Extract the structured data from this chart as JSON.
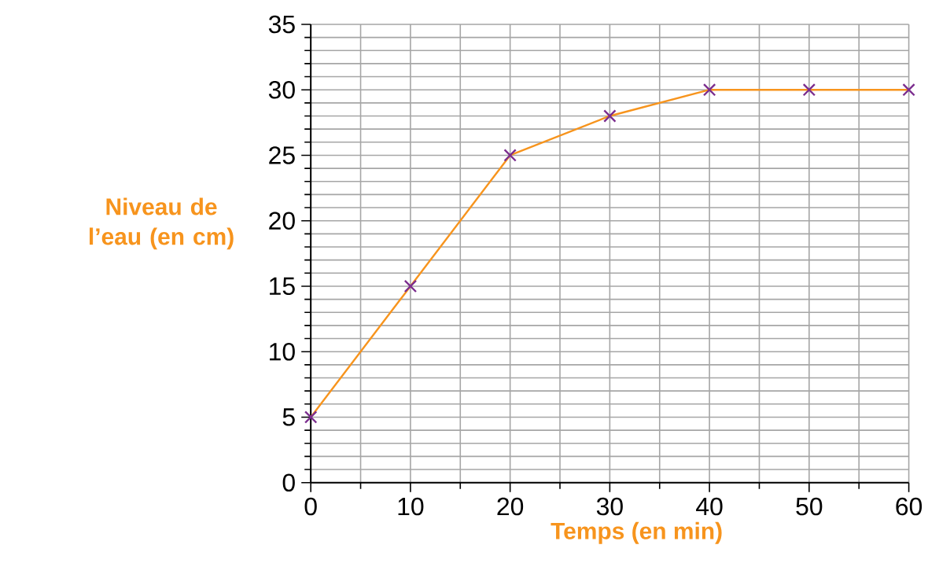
{
  "chart_data": {
    "type": "line",
    "xlabel": "Temps (en min)",
    "ylabel": "Niveau de l’eau (en cm)",
    "x": [
      0,
      10,
      20,
      30,
      40,
      50,
      60
    ],
    "series": [
      {
        "color": "#f7941d",
        "colors": [
          "#7b2d8e",
          "#7b2d8e",
          "#7b2d8e",
          "#7b2d8e",
          "#7b2d8e",
          "#7b2d8e",
          "#7b2d8e"
        ],
        "values": [
          5,
          15,
          25,
          28,
          30,
          30,
          30
        ]
      }
    ],
    "xlim": [
      0,
      60
    ],
    "ylim": [
      0,
      35
    ],
    "xticks": [
      0,
      10,
      20,
      30,
      40,
      50,
      60
    ],
    "yticks": [
      0,
      5,
      10,
      15,
      20,
      25,
      30,
      35
    ],
    "grid": true,
    "marker": "cross",
    "line_style": "solid"
  }
}
